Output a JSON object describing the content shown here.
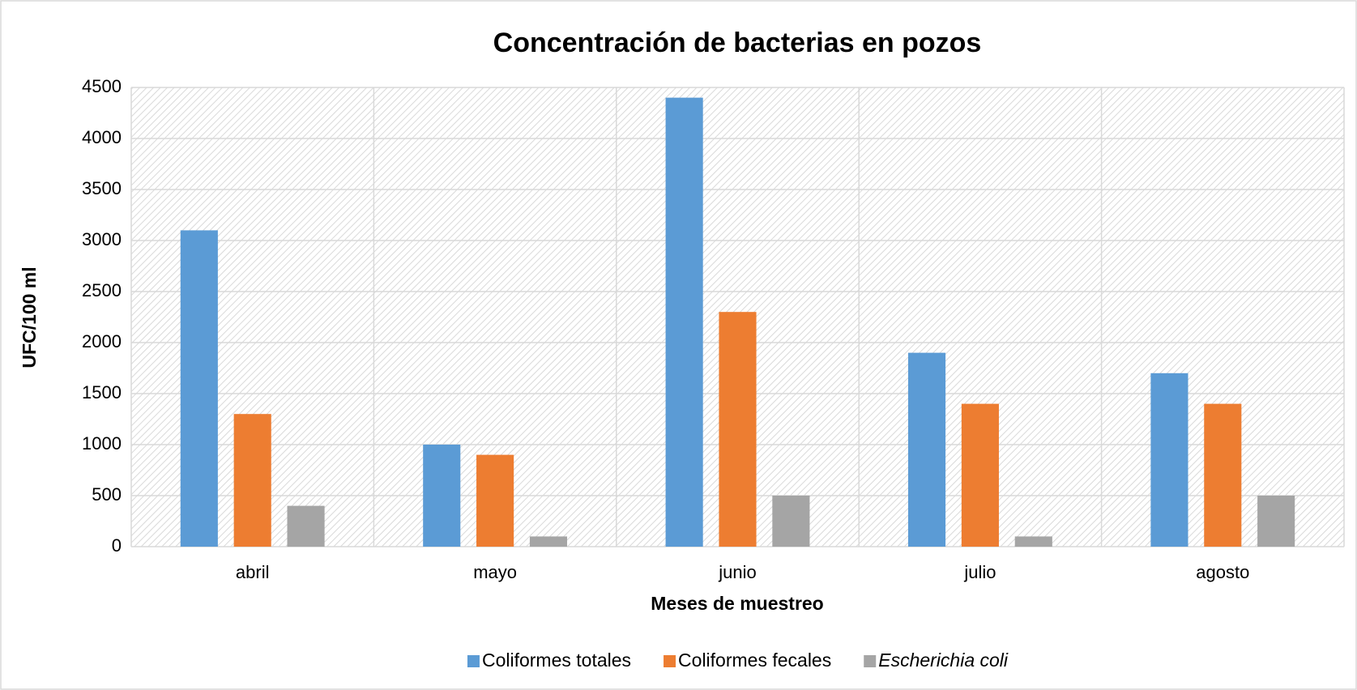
{
  "chart_data": {
    "type": "bar",
    "title": "Concentración de bacterias en pozos",
    "x_label": "Meses de muestreo",
    "y_label": "UFC/100 ml",
    "categories": [
      "abril",
      "mayo",
      "junio",
      "julio",
      "agosto"
    ],
    "series": [
      {
        "name": "Coliformes totales",
        "color": "#5b9bd5",
        "values": [
          3100,
          1000,
          4400,
          1900,
          1700
        ]
      },
      {
        "name": "Coliformes fecales",
        "color": "#ed7d31",
        "values": [
          1300,
          900,
          2300,
          1400,
          1400
        ]
      },
      {
        "name": "Escherichia coli",
        "color": "#a5a5a5",
        "values": [
          400,
          100,
          500,
          100,
          500
        ]
      }
    ],
    "ylim": [
      0,
      4500
    ],
    "yticks": [
      0,
      500,
      1000,
      1500,
      2000,
      2500,
      3000,
      3500,
      4000,
      4500
    ],
    "grid": true,
    "legend": "bottom"
  }
}
